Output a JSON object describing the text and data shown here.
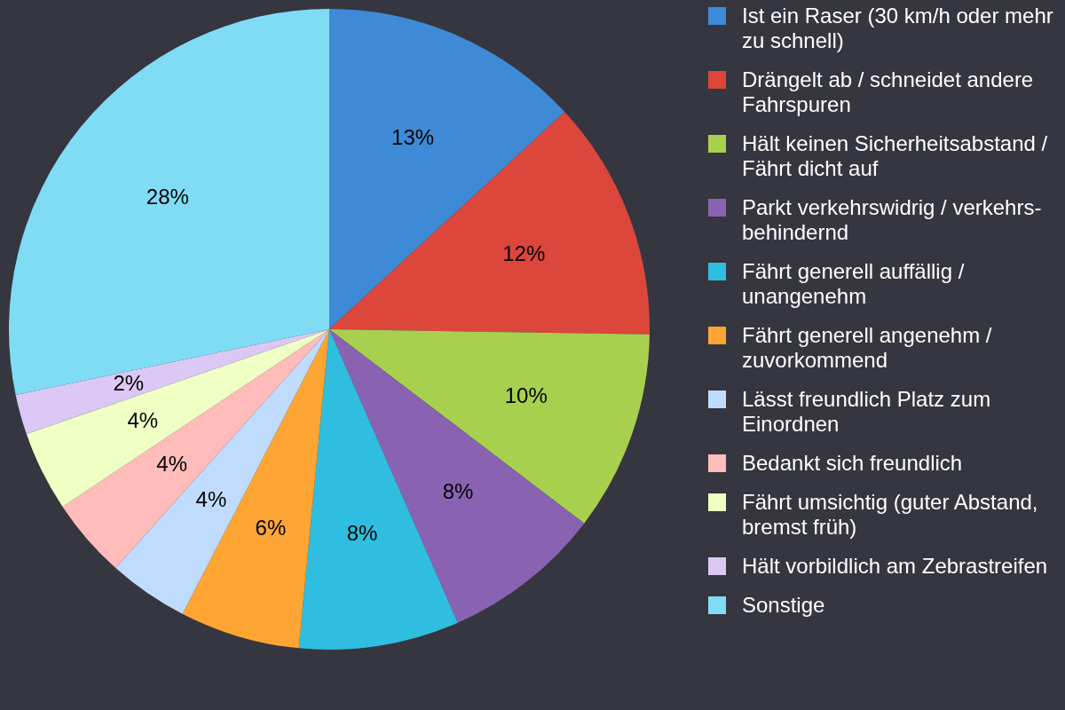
{
  "chart_data": {
    "type": "pie",
    "legend": "right",
    "categories": [
      "Ist ein Raser (30 km/h oder mehr zu schnell)",
      "Drängelt ab / schneidet andere Fahrspuren",
      "Hält keinen Sicherheitsabstand / Fährt dicht auf",
      "Parkt verkehrswidrig / verkehrs-behindernd",
      "Fährt generell auffällig / unangenehm",
      "Fährt generell angenehm / zuvorkommend",
      "Lässt freundlich Platz zum Einordnen",
      "Bedankt sich freundlich",
      "Fährt umsichtig (guter Abstand, bremst früh)",
      "Hält vorbildlich am Zebrastreifen",
      "Sonstige"
    ],
    "values": [
      13,
      12,
      10,
      8,
      8,
      6,
      4,
      4,
      4,
      2,
      28
    ],
    "value_labels": [
      "13%",
      "12%",
      "10%",
      "8%",
      "8%",
      "6%",
      "4%",
      "4%",
      "4%",
      "2%",
      "28%"
    ],
    "colors": [
      "#3e8ad6",
      "#dc463b",
      "#a8d04f",
      "#8963b2",
      "#30bee0",
      "#ffa533",
      "#bfdcff",
      "#ffbcba",
      "#f0ffc4",
      "#dcc8f4",
      "#80dcf4"
    ]
  }
}
